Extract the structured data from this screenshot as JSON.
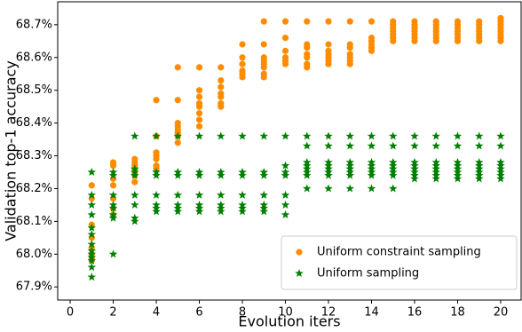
{
  "chart_data": {
    "type": "scatter",
    "xlabel": "Evolution iters",
    "ylabel": "Validation top-1 accuracy",
    "xlim": [
      -0.58,
      20.95
    ],
    "ylim": [
      67.86,
      68.77
    ],
    "xticks": [
      0,
      2,
      4,
      6,
      8,
      10,
      12,
      14,
      16,
      18,
      20
    ],
    "yticks": [
      {
        "value": 67.9,
        "label": "67.9%"
      },
      {
        "value": 68.0,
        "label": "68.0%"
      },
      {
        "value": 68.1,
        "label": "68.1%"
      },
      {
        "value": 68.2,
        "label": "68.2%"
      },
      {
        "value": 68.3,
        "label": "68.3%"
      },
      {
        "value": 68.4,
        "label": "68.4%"
      },
      {
        "value": 68.5,
        "label": "68.5%"
      },
      {
        "value": 68.6,
        "label": "68.6%"
      },
      {
        "value": 68.7,
        "label": "68.7%"
      }
    ],
    "legend": "lower right",
    "series": [
      {
        "name": "Uniform constraint sampling",
        "color": "#ff8c00",
        "marker": "circle",
        "x": [
          1,
          1,
          1,
          1,
          1,
          1,
          1,
          1,
          2,
          2,
          2,
          2,
          2,
          2,
          2,
          3,
          3,
          3,
          3,
          3,
          3,
          3,
          4,
          4,
          4,
          4,
          4,
          4,
          4,
          5,
          5,
          5,
          5,
          5,
          5,
          5,
          5,
          6,
          6,
          6,
          6,
          6,
          6,
          6,
          6,
          7,
          7,
          7,
          7,
          7,
          7,
          7,
          8,
          8,
          8,
          8,
          8,
          8,
          9,
          9,
          9,
          9,
          9,
          9,
          9,
          9,
          10,
          10,
          10,
          10,
          10,
          10,
          11,
          11,
          11,
          11,
          11,
          11,
          11,
          12,
          12,
          12,
          12,
          12,
          12,
          12,
          13,
          13,
          13,
          13,
          13,
          13,
          13,
          14,
          14,
          14,
          14,
          14,
          14,
          15,
          15,
          15,
          15,
          15,
          15,
          15,
          16,
          16,
          16,
          16,
          16,
          16,
          16,
          17,
          17,
          17,
          17,
          17,
          17,
          17,
          18,
          18,
          18,
          18,
          18,
          18,
          18,
          19,
          19,
          19,
          19,
          19,
          19,
          19,
          20,
          20,
          20,
          20,
          20,
          20,
          20,
          20
        ],
        "values": [
          68.21,
          68.17,
          68.09,
          68.05,
          68.02,
          68.0,
          67.99,
          67.98,
          68.28,
          68.27,
          68.23,
          68.21,
          68.17,
          68.14,
          68.12,
          68.29,
          68.28,
          68.27,
          68.26,
          68.25,
          68.24,
          68.22,
          68.47,
          68.36,
          68.31,
          68.3,
          68.29,
          68.27,
          68.26,
          68.57,
          68.47,
          68.4,
          68.39,
          68.38,
          68.37,
          68.36,
          68.34,
          68.57,
          68.5,
          68.48,
          68.46,
          68.45,
          68.43,
          68.41,
          68.39,
          68.57,
          68.53,
          68.51,
          68.49,
          68.48,
          68.46,
          68.45,
          68.64,
          68.6,
          68.58,
          68.56,
          68.55,
          68.54,
          68.71,
          68.64,
          68.6,
          68.59,
          68.58,
          68.57,
          68.55,
          68.54,
          68.71,
          68.66,
          68.62,
          68.6,
          68.59,
          68.58,
          68.71,
          68.64,
          68.63,
          68.61,
          68.6,
          68.58,
          68.57,
          68.71,
          68.64,
          68.62,
          68.61,
          68.6,
          68.59,
          68.58,
          68.71,
          68.64,
          68.63,
          68.61,
          68.6,
          68.59,
          68.58,
          68.71,
          68.66,
          68.65,
          68.64,
          68.63,
          68.62,
          68.71,
          68.7,
          68.69,
          68.68,
          68.67,
          68.66,
          68.65,
          68.71,
          68.7,
          68.69,
          68.68,
          68.67,
          68.66,
          68.65,
          68.71,
          68.7,
          68.69,
          68.68,
          68.67,
          68.66,
          68.65,
          68.71,
          68.7,
          68.69,
          68.68,
          68.67,
          68.66,
          68.65,
          68.71,
          68.7,
          68.69,
          68.68,
          68.67,
          68.66,
          68.65,
          68.72,
          68.71,
          68.7,
          68.69,
          68.68,
          68.67,
          68.66,
          68.65
        ]
      },
      {
        "name": "Uniform sampling",
        "color": "#008000",
        "marker": "star",
        "x": [
          1,
          1,
          1,
          1,
          1,
          1,
          1,
          1,
          1,
          1,
          1,
          1,
          1,
          2,
          2,
          2,
          2,
          2,
          2,
          2,
          2,
          3,
          3,
          3,
          3,
          3,
          3,
          3,
          3,
          4,
          4,
          4,
          4,
          4,
          4,
          4,
          5,
          5,
          5,
          5,
          5,
          5,
          5,
          6,
          6,
          6,
          6,
          6,
          6,
          6,
          7,
          7,
          7,
          7,
          7,
          7,
          7,
          8,
          8,
          8,
          8,
          8,
          8,
          8,
          9,
          9,
          9,
          9,
          9,
          9,
          9,
          10,
          10,
          10,
          10,
          10,
          10,
          10,
          11,
          11,
          11,
          11,
          11,
          11,
          11,
          11,
          12,
          12,
          12,
          12,
          12,
          12,
          12,
          12,
          13,
          13,
          13,
          13,
          13,
          13,
          13,
          13,
          14,
          14,
          14,
          14,
          14,
          14,
          14,
          14,
          15,
          15,
          15,
          15,
          15,
          15,
          15,
          15,
          16,
          16,
          16,
          16,
          16,
          16,
          16,
          16,
          17,
          17,
          17,
          17,
          17,
          17,
          17,
          17,
          18,
          18,
          18,
          18,
          18,
          18,
          18,
          18,
          19,
          19,
          19,
          19,
          19,
          19,
          19,
          19,
          20,
          20,
          20,
          20,
          20,
          20,
          20,
          20
        ],
        "values": [
          68.25,
          68.18,
          68.15,
          68.12,
          68.08,
          68.06,
          68.03,
          68.01,
          68.0,
          67.99,
          67.98,
          67.96,
          67.93,
          68.25,
          68.24,
          68.18,
          68.15,
          68.14,
          68.12,
          68.11,
          68.0,
          68.36,
          68.26,
          68.25,
          68.24,
          68.18,
          68.15,
          68.11,
          68.1,
          68.36,
          68.25,
          68.24,
          68.18,
          68.15,
          68.14,
          68.13,
          68.36,
          68.25,
          68.24,
          68.18,
          68.15,
          68.14,
          68.13,
          68.36,
          68.25,
          68.24,
          68.18,
          68.15,
          68.14,
          68.13,
          68.36,
          68.25,
          68.24,
          68.18,
          68.15,
          68.14,
          68.13,
          68.36,
          68.25,
          68.24,
          68.18,
          68.15,
          68.14,
          68.13,
          68.36,
          68.25,
          68.24,
          68.18,
          68.15,
          68.14,
          68.13,
          68.36,
          68.27,
          68.25,
          68.24,
          68.18,
          68.15,
          68.12,
          68.36,
          68.33,
          68.28,
          68.27,
          68.26,
          68.25,
          68.24,
          68.2,
          68.36,
          68.33,
          68.28,
          68.27,
          68.26,
          68.25,
          68.24,
          68.2,
          68.36,
          68.33,
          68.28,
          68.27,
          68.26,
          68.25,
          68.24,
          68.2,
          68.36,
          68.33,
          68.28,
          68.27,
          68.26,
          68.25,
          68.24,
          68.2,
          68.36,
          68.33,
          68.28,
          68.27,
          68.26,
          68.25,
          68.24,
          68.2,
          68.36,
          68.33,
          68.28,
          68.27,
          68.26,
          68.25,
          68.24,
          68.23,
          68.36,
          68.33,
          68.28,
          68.27,
          68.26,
          68.25,
          68.24,
          68.23,
          68.36,
          68.33,
          68.28,
          68.27,
          68.26,
          68.25,
          68.24,
          68.23,
          68.36,
          68.33,
          68.28,
          68.27,
          68.26,
          68.25,
          68.24,
          68.23,
          68.36,
          68.33,
          68.28,
          68.27,
          68.26,
          68.25,
          68.24,
          68.23
        ]
      }
    ]
  }
}
